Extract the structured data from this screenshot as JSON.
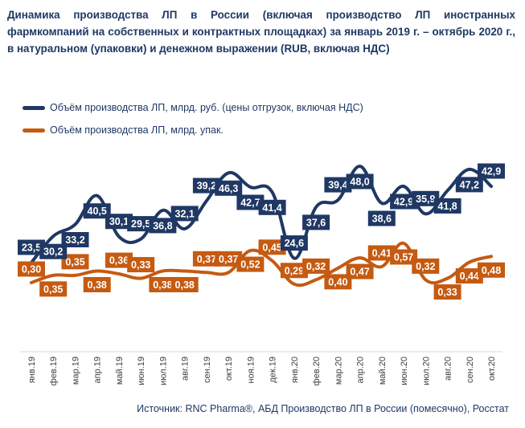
{
  "title": "Динамика производства ЛП в России (включая производство ЛП иностранных фармкомпаний на собственных и контрактных площадках) за январь 2019 г. – октябрь 2020 г., в натуральном (упаковки) и денежном выражении (RUB, включая НДС)",
  "source": "Источник: RNC Pharma®, АБД Производство ЛП в России (помесячно), Росстат",
  "chart_data": {
    "type": "line",
    "title": "Динамика производства ЛП в России (включая производство ЛП иностранных фармкомпаний на собственных и контрактных площадках) за январь 2019 г. – октябрь 2020 г., в натуральном (упаковки) и денежном выражении (RUB, включая НДС)",
    "categories": [
      "янв.19",
      "фев.19",
      "мар.19",
      "апр.19",
      "май.19",
      "июн.19",
      "июл.19",
      "авг.19",
      "сен.19",
      "окт.19",
      "ноя.19",
      "дек.19",
      "янв.20",
      "фев.20",
      "мар.20",
      "апр.20",
      "май.20",
      "июн.20",
      "июл.20",
      "авг.20",
      "сен.20",
      "окт.20"
    ],
    "series": [
      {
        "name": "Объём производства ЛП, млрд. руб. (цены отгрузок, включая НДС)",
        "color": "#1f3864",
        "values": [
          23.5,
          30.2,
          33.2,
          40.5,
          30.1,
          29.5,
          36.8,
          32.1,
          39.2,
          46.3,
          42.7,
          41.4,
          24.6,
          37.6,
          39.4,
          48.0,
          38.6,
          42.9,
          35.9,
          41.8,
          47.2,
          42.9
        ],
        "labels": [
          "23,5",
          "30,2",
          "33,2",
          "40,5",
          "30,1",
          "29,5",
          "36,8",
          "32,1",
          "39,2",
          "46,3",
          "42,7",
          "41,4",
          "24,6",
          "37,6",
          "39,4",
          "48,0",
          "38,6",
          "42,9",
          "35,9",
          "41,8",
          "47,2",
          "42,9"
        ]
      },
      {
        "name": "Объём производства ЛП, млрд. упак.",
        "color": "#c55a11",
        "values": [
          0.3,
          0.35,
          0.35,
          0.38,
          0.36,
          0.33,
          0.38,
          0.38,
          0.37,
          0.37,
          0.52,
          0.45,
          0.29,
          0.32,
          0.4,
          0.47,
          0.41,
          0.57,
          0.32,
          0.33,
          0.44,
          0.48
        ],
        "labels": [
          "0,30",
          "0,35",
          "0,35",
          "0,38",
          "0,36",
          "0,33",
          "0,38",
          "0,38",
          "0,37",
          "0,37",
          "0,52",
          "0,45",
          "0,29",
          "0,32",
          "0,40",
          "0,47",
          "0,41",
          "0,57",
          "0,32",
          "0,33",
          "0,44",
          "0,48"
        ]
      }
    ],
    "legend": "top-left",
    "grid": false
  }
}
